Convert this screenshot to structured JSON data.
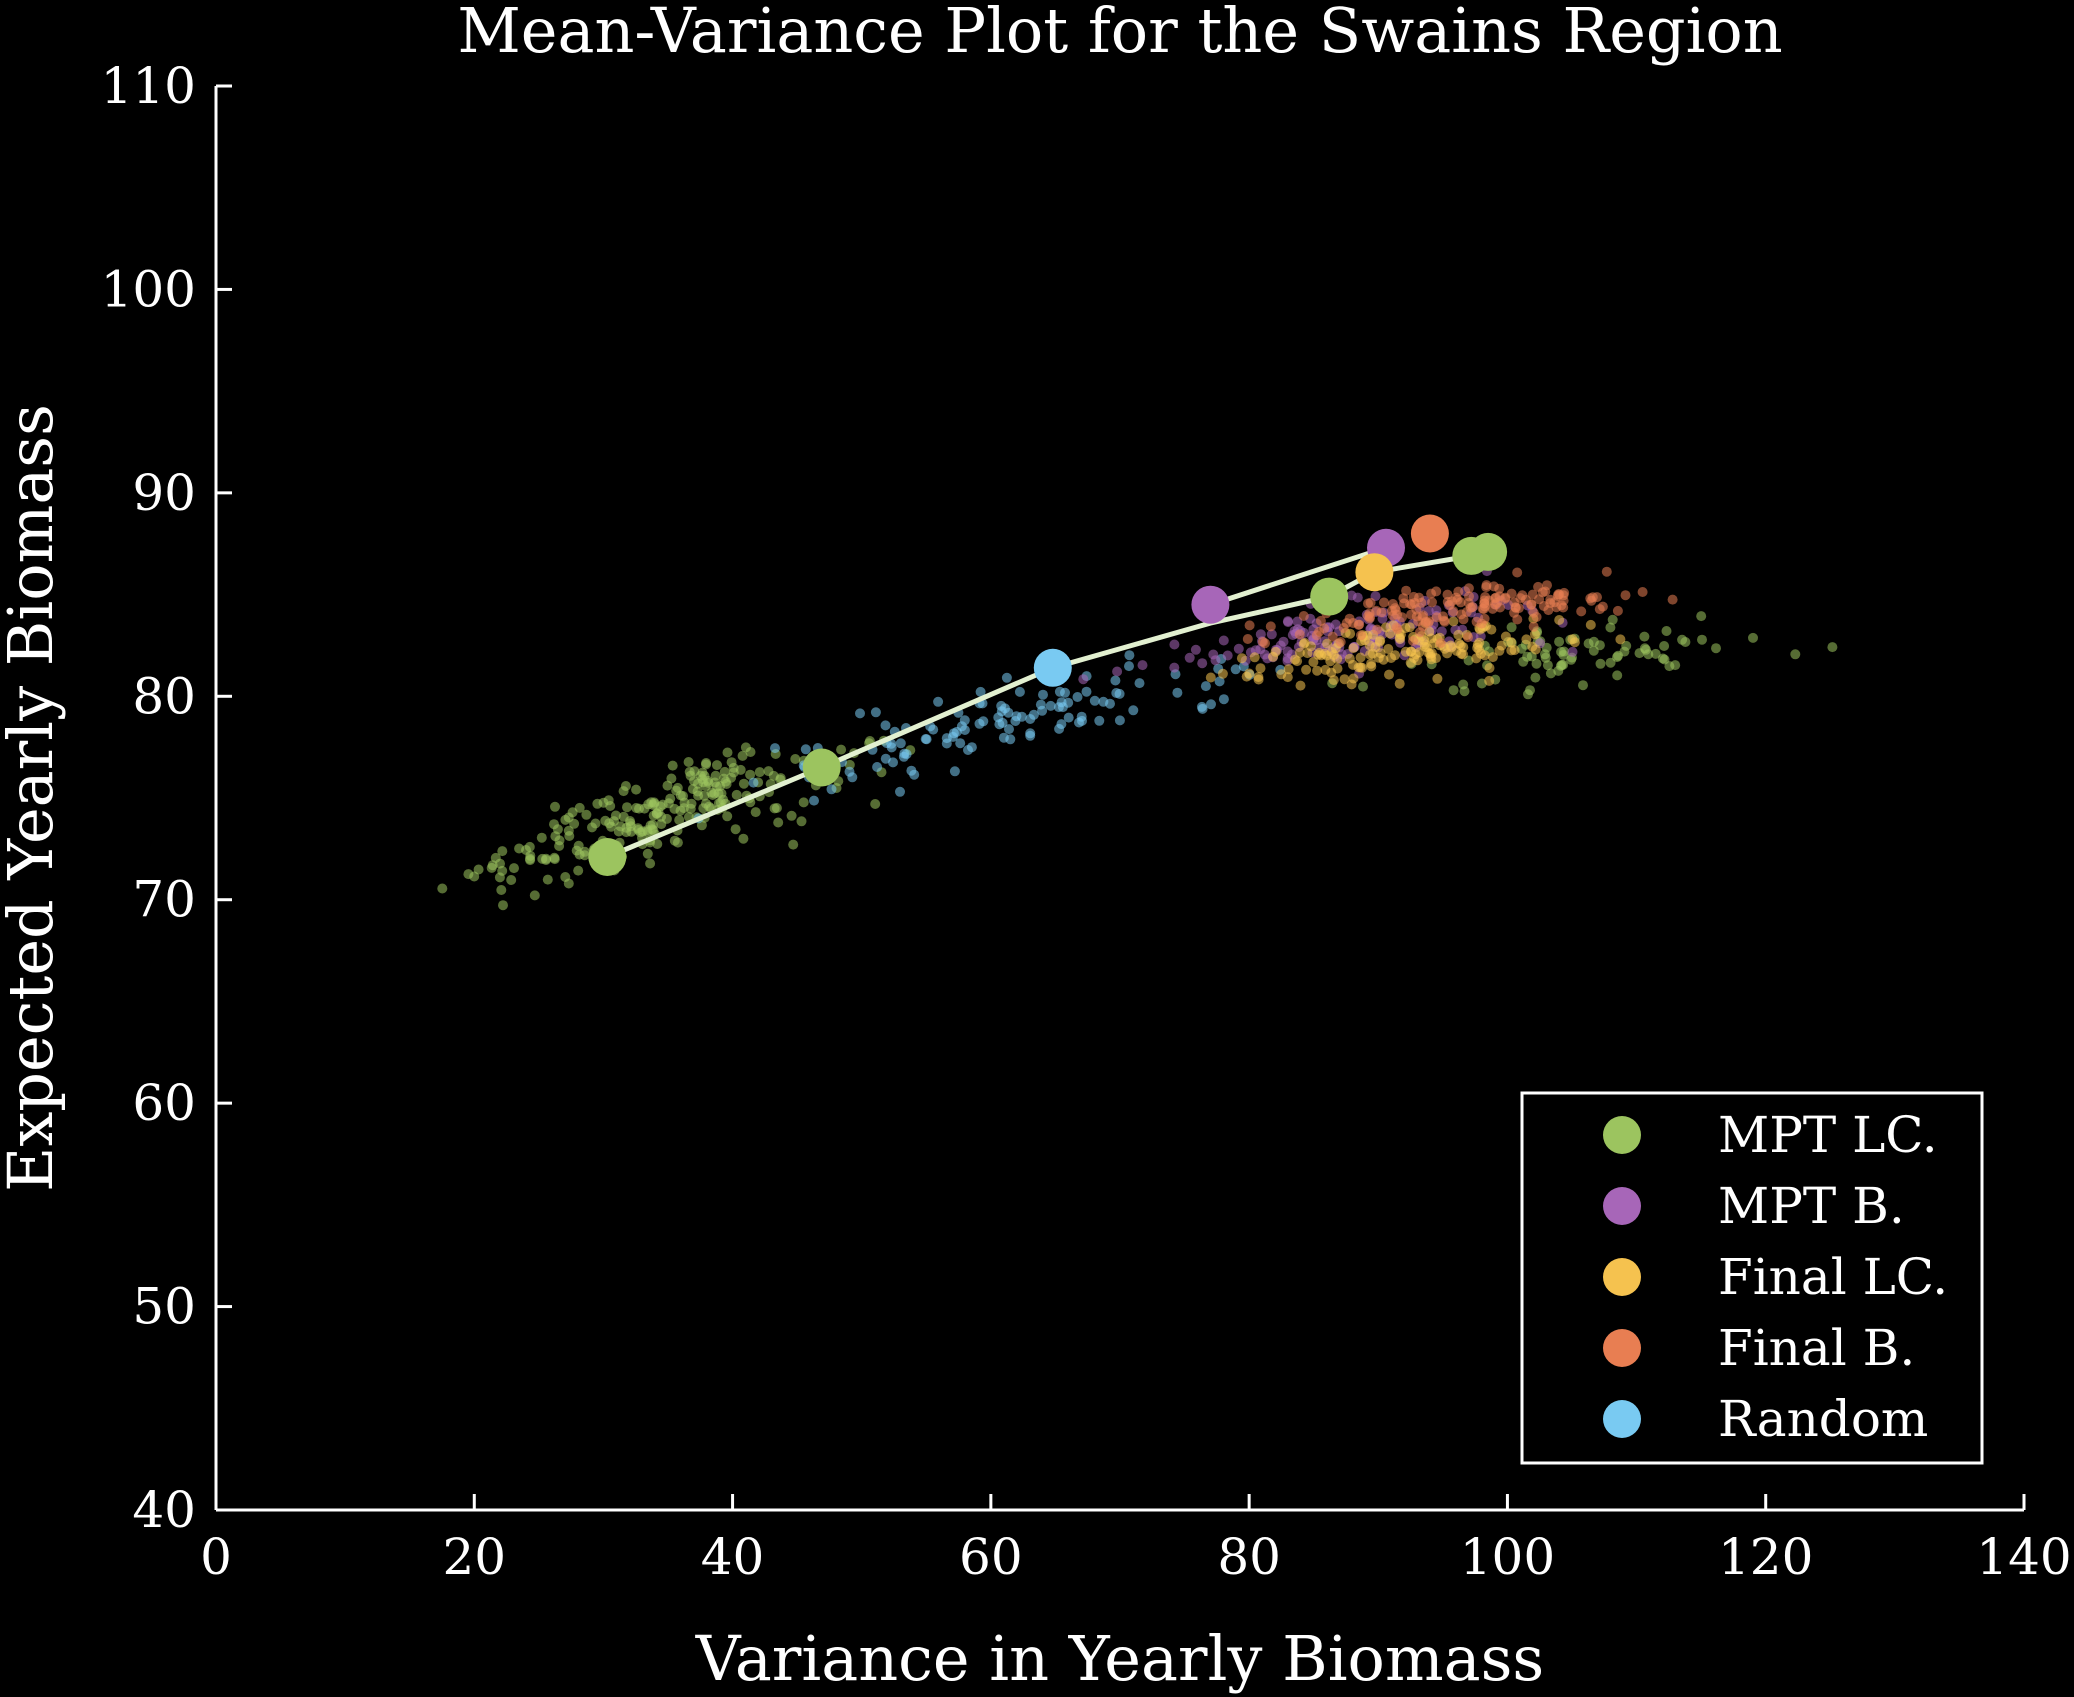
{
  "chart_data": {
    "type": "scatter",
    "title": "Mean-Variance Plot for the Swains Region",
    "xlabel": "Variance in Yearly Biomass",
    "ylabel": "Expected Yearly Biomass",
    "xlim": [
      0,
      140
    ],
    "ylim": [
      40,
      110
    ],
    "xticks": [
      0,
      20,
      40,
      60,
      80,
      100,
      120,
      140
    ],
    "yticks": [
      40,
      50,
      60,
      70,
      80,
      90,
      100,
      110
    ],
    "grid": false,
    "legend_position": "lower-right",
    "series": [
      {
        "name": "MPT LC.",
        "color": "#9cc45f",
        "points": [
          [
            30.3,
            72.1
          ],
          [
            46.9,
            76.5
          ],
          [
            86.2,
            84.9
          ],
          [
            97.2,
            86.9
          ],
          [
            98.5,
            87.1
          ]
        ]
      },
      {
        "name": "MPT B.",
        "color": "#a766b8",
        "points": [
          [
            77.0,
            84.5
          ],
          [
            90.6,
            87.3
          ]
        ]
      },
      {
        "name": "Final LC.",
        "color": "#f5c24f",
        "points": [
          [
            89.7,
            86.1
          ]
        ]
      },
      {
        "name": "Final B.",
        "color": "#e87e52",
        "points": [
          [
            94.0,
            88.0
          ]
        ]
      },
      {
        "name": "Random",
        "color": "#79caf2",
        "points": [
          [
            64.8,
            81.4
          ]
        ]
      }
    ],
    "frontier": [
      [
        30.3,
        72.1
      ],
      [
        46.9,
        76.5
      ],
      [
        64.8,
        81.4
      ],
      [
        77.0,
        83.6
      ],
      [
        86.2,
        84.9
      ],
      [
        89.7,
        86.1
      ],
      [
        97.2,
        86.9
      ],
      [
        98.5,
        87.1
      ]
    ],
    "frontier_upper": [
      [
        77.0,
        84.5
      ],
      [
        90.6,
        87.3
      ]
    ],
    "frontier_color": "#e2f0d0",
    "background": "#000000"
  }
}
